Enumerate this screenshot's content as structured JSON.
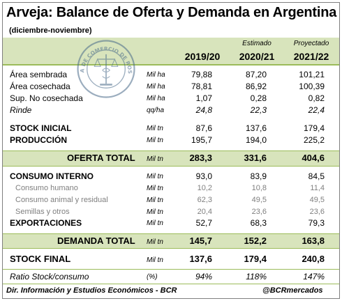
{
  "title": "Arveja: Balance de Oferta y Demanda en Argentina",
  "subtitle": "(diciembre-noviembre)",
  "seal_text": "BOLSA DE COMERCIO DE ROSARIO",
  "columns": [
    {
      "status": "",
      "year": "2019/20"
    },
    {
      "status": "Estimado",
      "year": "2020/21"
    },
    {
      "status": "Proyectado",
      "year": "2021/22"
    }
  ],
  "rows": [
    {
      "label": "Área sembrada",
      "unit": "Mil ha",
      "values": [
        "79,88",
        "87,20",
        "101,21"
      ]
    },
    {
      "label": "Área cosechada",
      "unit": "Mil ha",
      "values": [
        "78,81",
        "86,92",
        "100,39"
      ]
    },
    {
      "label": "Sup. No cosechada",
      "unit": "Mil ha",
      "values": [
        "1,07",
        "0,28",
        "0,82"
      ]
    },
    {
      "label": "Rinde",
      "unit": "qq/ha",
      "values": [
        "24,8",
        "22,3",
        "22,4"
      ]
    },
    {
      "label": "STOCK INICIAL",
      "unit": "Mil tn",
      "values": [
        "87,6",
        "137,6",
        "179,4"
      ]
    },
    {
      "label": "PRODUCCIÓN",
      "unit": "Mil tn",
      "values": [
        "195,7",
        "194,0",
        "225,2"
      ]
    },
    {
      "label": "OFERTA TOTAL",
      "unit": "Mil tn",
      "values": [
        "283,3",
        "331,6",
        "404,6"
      ]
    },
    {
      "label": "CONSUMO INTERNO",
      "unit": "Mil tn",
      "values": [
        "93,0",
        "83,9",
        "84,5"
      ]
    },
    {
      "label": "Consumo humano",
      "unit": "Mil tn",
      "values": [
        "10,2",
        "10,8",
        "11,4"
      ]
    },
    {
      "label": "Consumo animal y residual",
      "unit": "Mil tn",
      "values": [
        "62,3",
        "49,5",
        "49,5"
      ]
    },
    {
      "label": "Semillas y otros",
      "unit": "Mil tn",
      "values": [
        "20,4",
        "23,6",
        "23,6"
      ]
    },
    {
      "label": "EXPORTACIONES",
      "unit": "Mil tn",
      "values": [
        "52,7",
        "68,3",
        "79,3"
      ]
    },
    {
      "label": "DEMANDA TOTAL",
      "unit": "Mil tn",
      "values": [
        "145,7",
        "152,2",
        "163,8"
      ]
    },
    {
      "label": "STOCK FINAL",
      "unit": "Mil tn",
      "values": [
        "137,6",
        "179,4",
        "240,8"
      ]
    },
    {
      "label": "Ratio Stock/consumo",
      "unit": "(%)",
      "values": [
        "94%",
        "118%",
        "147%"
      ]
    }
  ],
  "footer": {
    "source": "Dir. Información y Estudios Económicos - BCR",
    "handle": "@BCRmercados"
  },
  "colors": {
    "band": "#d8e4bc",
    "rule": "#9bbb59",
    "muted": "#7f7f7f"
  }
}
